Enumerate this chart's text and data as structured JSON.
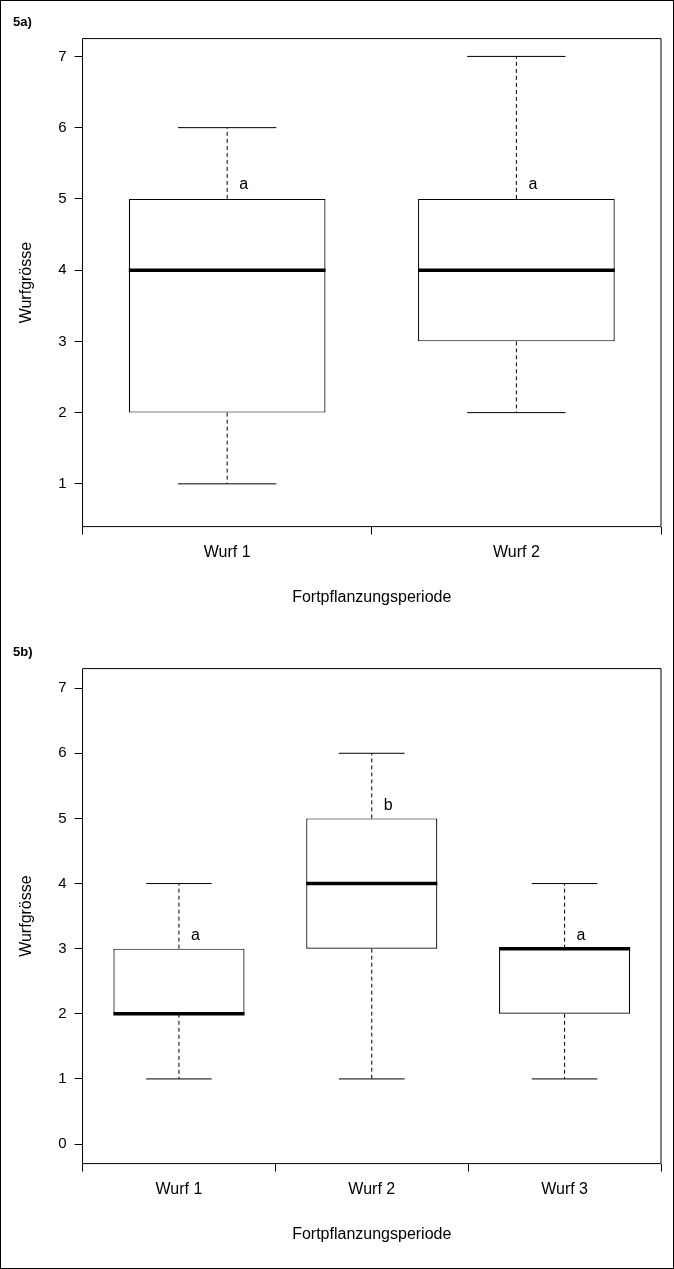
{
  "chart_data": [
    {
      "type": "box",
      "title": "5a)",
      "xlabel": "Fortpflanzungsperiode",
      "ylabel": "Wurfgrösse",
      "categories": [
        "Wurf 1",
        "Wurf 2"
      ],
      "ylim": [
        0.4,
        7.25
      ],
      "yticks": [
        1,
        2,
        3,
        4,
        5,
        6,
        7
      ],
      "boxes": [
        {
          "low": 1,
          "q1": 2,
          "median": 4,
          "q3": 5,
          "high": 6
        },
        {
          "low": 2,
          "q1": 3,
          "median": 4,
          "q3": 5,
          "high": 7
        }
      ],
      "annotations": [
        {
          "text": "a",
          "x": "Wurf 1",
          "y": 5.2
        },
        {
          "text": "a",
          "x": "Wurf 2",
          "y": 5.2
        }
      ]
    },
    {
      "type": "box",
      "title": "5b)",
      "xlabel": "Fortpflanzungsperiode",
      "ylabel": "Wurfgrösse",
      "categories": [
        "Wurf 1",
        "Wurf 2",
        "Wurf 3"
      ],
      "ylim": [
        -0.3,
        7.3
      ],
      "yticks": [
        0,
        1,
        2,
        3,
        4,
        5,
        6,
        7
      ],
      "boxes": [
        {
          "low": 1,
          "q1": 2,
          "median": 2,
          "q3": 3,
          "high": 4
        },
        {
          "low": 1,
          "q1": 3,
          "median": 4,
          "q3": 5,
          "high": 6
        },
        {
          "low": 1,
          "q1": 2,
          "median": 3,
          "q3": 3,
          "high": 4
        }
      ],
      "annotations": [
        {
          "text": "a",
          "x": "Wurf 1",
          "y": 3.2
        },
        {
          "text": "b",
          "x": "Wurf 2",
          "y": 5.2
        },
        {
          "text": "a",
          "x": "Wurf 3",
          "y": 3.2
        }
      ]
    }
  ]
}
